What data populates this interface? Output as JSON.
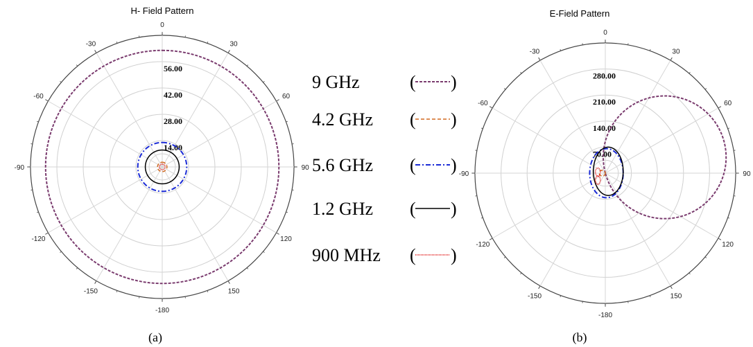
{
  "legend": [
    {
      "label": "9  GHz",
      "color": "#7a3b6e",
      "dash": "4,2",
      "width": 2
    },
    {
      "label": "4.2 GHz",
      "color": "#d2691e",
      "dash": "5,3",
      "width": 1.5
    },
    {
      "label": "5.6 GHz",
      "color": "#1a2ad6",
      "dash": "7,3,2,3",
      "width": 2
    },
    {
      "label": "1.2 GHz",
      "color": "#000000",
      "dash": "",
      "width": 1.5
    },
    {
      "label": "900 MHz",
      "color": "#e01010",
      "dash": "1,1",
      "width": 1.5
    }
  ],
  "chart_data": [
    {
      "type": "polar",
      "title": "H- Field Pattern",
      "caption": "(a)",
      "angle_ticks": [
        0,
        30,
        60,
        90,
        120,
        150,
        -180,
        -150,
        -120,
        -90,
        -60,
        -30
      ],
      "rmax": 70,
      "radial_labels": [
        "56.00",
        "42.00",
        "28.00",
        "14.00"
      ],
      "radial_values": [
        56,
        42,
        28,
        14
      ],
      "series": [
        {
          "name": "9  GHz",
          "pattern": "circle",
          "r": 62
        },
        {
          "name": "4.2 GHz",
          "pattern": "circle",
          "r": 2.5
        },
        {
          "name": "5.6 GHz",
          "pattern": "circle",
          "r": 13
        },
        {
          "name": "1.2 GHz",
          "pattern": "circle",
          "r": 9
        },
        {
          "name": "900 MHz",
          "pattern": "circle",
          "r": 1.5
        }
      ]
    },
    {
      "type": "polar",
      "title": "E-Field Pattern",
      "caption": "(b)",
      "angle_ticks": [
        0,
        30,
        60,
        90,
        120,
        150,
        -180,
        -150,
        -120,
        -90,
        -60,
        -30
      ],
      "rmax": 350,
      "radial_labels": [
        "280.00",
        "210.00",
        "140.00",
        "70.00"
      ],
      "radial_values": [
        280,
        210,
        140,
        70
      ],
      "series": [
        {
          "name": "9  GHz",
          "pattern": "offset-circle",
          "a": 165,
          "phi": 75
        },
        {
          "name": "4.2 GHz",
          "pattern": "offset-circle",
          "a": 8,
          "phi": -90
        },
        {
          "name": "5.6 GHz",
          "pattern": "ellipse",
          "cx": 3,
          "cy": 0,
          "rx": 45,
          "ry": 66
        },
        {
          "name": "1.2 GHz",
          "pattern": "ellipse",
          "cx": 8,
          "cy": 5,
          "rx": 40,
          "ry": 65
        },
        {
          "name": "900 MHz",
          "pattern": "loops",
          "cx": -20,
          "cy": -8,
          "size": 22
        }
      ]
    }
  ]
}
